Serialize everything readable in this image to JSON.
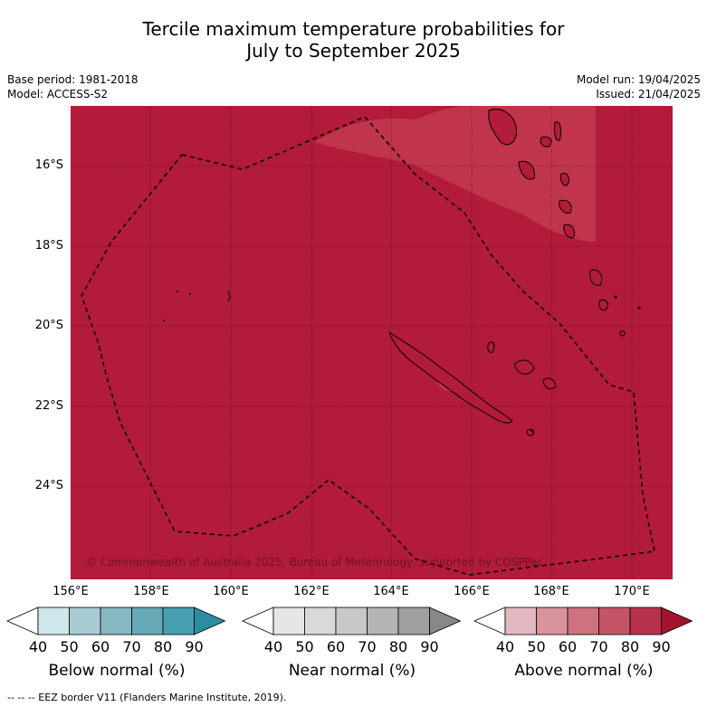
{
  "header": {
    "title_line1": "Tercile maximum temperature probabilities for",
    "title_line2": "July to September 2025",
    "base_period": "Base period: 1981-2018",
    "model": "Model: ACCESS-S2",
    "model_run": "Model run: 19/04/2025",
    "issued": "Issued: 21/04/2025"
  },
  "map": {
    "lat_labels": [
      "16°S",
      "18°S",
      "20°S",
      "22°S",
      "24°S"
    ],
    "lon_labels": [
      "156°E",
      "158°E",
      "160°E",
      "162°E",
      "164°E",
      "166°E",
      "168°E",
      "170°E"
    ],
    "copyright": "© Commonwealth of Australia 2025, Bureau of Meteorology, supported by COSPPac",
    "colors": {
      "above_80": "#b21b3a",
      "above_70": "#c1384f"
    }
  },
  "colorbars": [
    {
      "label": "Below normal (%)",
      "ticks": [
        "40",
        "50",
        "60",
        "70",
        "80",
        "90"
      ],
      "colors": [
        "#cfe6ea",
        "#a7cbd1",
        "#88b8c1",
        "#66a8b4",
        "#47a0b0",
        "#2b8fa3"
      ]
    },
    {
      "label": "Near normal (%)",
      "ticks": [
        "40",
        "50",
        "60",
        "70",
        "80",
        "90"
      ],
      "colors": [
        "#e6e6e6",
        "#d9d9d9",
        "#c8c8c8",
        "#b4b4b4",
        "#a0a0a0",
        "#888888"
      ]
    },
    {
      "label": "Above normal (%)",
      "ticks": [
        "40",
        "50",
        "60",
        "70",
        "80",
        "90"
      ],
      "colors": [
        "#e4b8c0",
        "#d9939c",
        "#cd727e",
        "#c55566",
        "#b8314d",
        "#a3122e"
      ]
    }
  ],
  "footer": "--  --  -- EEZ border V11 (Flanders Marine Institute, 2019)."
}
